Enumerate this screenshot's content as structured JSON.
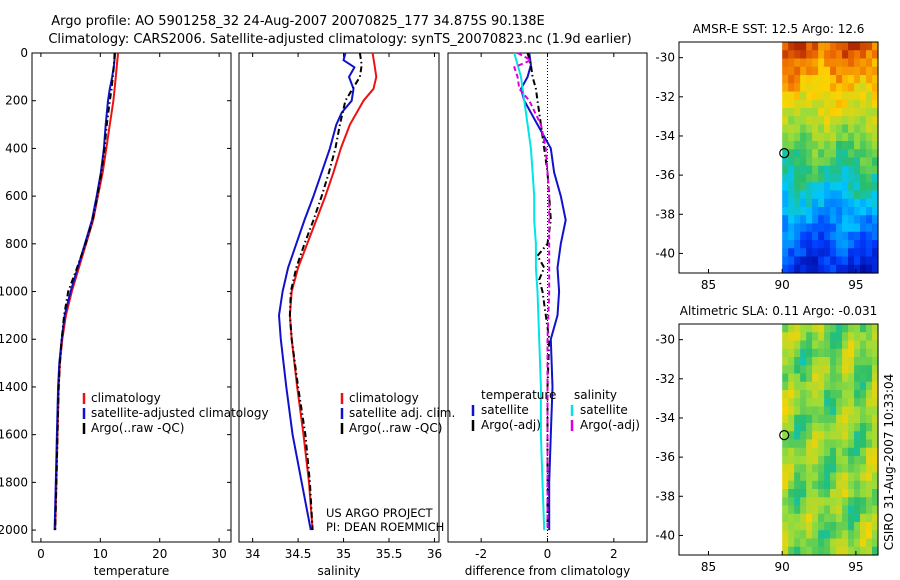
{
  "header": {
    "line1": "Argo profile: AO 5901258_32 24-Aug-2007 20070825_177 34.875S 90.138E",
    "line2": "Climatology: CARS2006. Satellite-adjusted climatology: synTS_20070823.nc (1.9d earlier)"
  },
  "credit": {
    "line1": "US ARGO PROJECT",
    "line2": "PI: DEAN ROEMMICH"
  },
  "side_stamp": "CSIRO 31-Aug-2007 10:33:04",
  "colors": {
    "climatology": "#ee1111",
    "satellite": "#1111cc",
    "argo": "#000000",
    "sat_salinity": "#00e5e5",
    "argo_salinity": "#dd00dd"
  },
  "chart_data": [
    {
      "type": "line",
      "id": "temperature",
      "xlabel": "temperature",
      "xlim": [
        -1.5,
        32
      ],
      "ylim": [
        0,
        2050
      ],
      "xticks": [
        0,
        10,
        20,
        30
      ],
      "yticks": [
        0,
        200,
        400,
        600,
        800,
        1000,
        1200,
        1400,
        1600,
        1800,
        2000
      ],
      "legend": [
        {
          "label": "climatology",
          "key": "climatology"
        },
        {
          "label": "satellite-adjusted climatology",
          "key": "satellite"
        },
        {
          "label": "Argo(..raw -QC)",
          "key": "argo"
        }
      ],
      "series": [
        {
          "name": "climatology",
          "key": "climatology",
          "dash": "",
          "depth": [
            0,
            50,
            100,
            150,
            200,
            300,
            400,
            500,
            600,
            700,
            800,
            900,
            1000,
            1100,
            1200,
            1300,
            1400,
            1600,
            1800,
            2000
          ],
          "values": [
            13.0,
            12.8,
            12.6,
            12.4,
            12.2,
            11.6,
            11.0,
            10.4,
            9.6,
            8.8,
            7.6,
            6.4,
            5.2,
            4.2,
            3.6,
            3.2,
            3.0,
            2.8,
            2.6,
            2.4
          ]
        },
        {
          "name": "satellite-adjusted climatology",
          "key": "satellite",
          "dash": "",
          "depth": [
            0,
            50,
            100,
            150,
            200,
            300,
            400,
            500,
            600,
            700,
            800,
            900,
            1000,
            1100,
            1200,
            1300,
            1400,
            1600,
            1800,
            2000
          ],
          "values": [
            12.5,
            12.3,
            12.0,
            11.6,
            11.3,
            10.9,
            10.6,
            10.1,
            9.4,
            8.6,
            7.4,
            6.2,
            5.0,
            4.0,
            3.5,
            3.1,
            2.9,
            2.7,
            2.5,
            2.3
          ]
        },
        {
          "name": "Argo(..raw -QC)",
          "key": "argo",
          "dash": "6,3,1.5,3",
          "depth": [
            0,
            50,
            100,
            150,
            200,
            300,
            400,
            500,
            600,
            700,
            800,
            900,
            1000,
            1100,
            1200,
            1300,
            1400,
            1600,
            1800,
            2000
          ],
          "values": [
            12.4,
            12.3,
            12.1,
            11.9,
            11.6,
            11.1,
            10.7,
            10.2,
            9.5,
            8.7,
            7.5,
            6.1,
            4.6,
            3.9,
            3.5,
            3.2,
            3.0,
            2.8,
            2.6,
            2.4
          ]
        }
      ]
    },
    {
      "type": "line",
      "id": "salinity",
      "xlabel": "salinity",
      "xlim": [
        33.85,
        36.05
      ],
      "ylim": [
        0,
        2050
      ],
      "xticks": [
        34,
        34.5,
        35,
        35.5,
        36
      ],
      "yticks": [],
      "legend": [
        {
          "label": "climatology",
          "key": "climatology"
        },
        {
          "label": "satellite adj. clim.",
          "key": "satellite"
        },
        {
          "label": "Argo(..raw -QC)",
          "key": "argo"
        }
      ],
      "series": [
        {
          "name": "climatology",
          "key": "climatology",
          "dash": "",
          "depth": [
            0,
            50,
            100,
            150,
            200,
            300,
            400,
            500,
            600,
            700,
            800,
            900,
            1000,
            1100,
            1200,
            1400,
            1600,
            1800,
            2000
          ],
          "values": [
            35.32,
            35.34,
            35.36,
            35.33,
            35.22,
            35.07,
            34.97,
            34.89,
            34.8,
            34.7,
            34.6,
            34.5,
            34.43,
            34.41,
            34.43,
            34.49,
            34.56,
            34.62,
            34.66
          ]
        },
        {
          "name": "satellite adj. clim.",
          "key": "satellite",
          "dash": "",
          "depth": [
            0,
            30,
            60,
            100,
            150,
            200,
            250,
            300,
            400,
            500,
            600,
            700,
            800,
            900,
            1000,
            1100,
            1200,
            1400,
            1600,
            1800,
            2000
          ],
          "values": [
            35.02,
            35.0,
            35.12,
            35.06,
            35.11,
            35.09,
            34.98,
            34.92,
            34.85,
            34.76,
            34.67,
            34.57,
            34.48,
            34.39,
            34.33,
            34.29,
            34.31,
            34.37,
            34.44,
            34.54,
            34.64
          ]
        },
        {
          "name": "Argo(..raw -QC)",
          "key": "argo",
          "dash": "6,3,1.5,3",
          "depth": [
            0,
            50,
            100,
            150,
            200,
            300,
            400,
            500,
            600,
            700,
            800,
            900,
            1000,
            1100,
            1200,
            1400,
            1600,
            1800,
            2000
          ],
          "values": [
            35.18,
            35.2,
            35.18,
            35.1,
            35.02,
            34.96,
            34.91,
            34.84,
            34.76,
            34.67,
            34.57,
            34.48,
            34.42,
            34.41,
            34.43,
            34.5,
            34.58,
            34.63,
            34.66
          ]
        }
      ]
    },
    {
      "type": "line",
      "id": "difference",
      "xlabel": "difference from climatology",
      "xlim": [
        -3.0,
        3.0
      ],
      "ylim": [
        0,
        2050
      ],
      "xticks": [
        -2,
        0,
        2
      ],
      "yticks": [],
      "zero_line": true,
      "legend_left_title": "temperature",
      "legend_right_title": "salinity",
      "legend": [
        {
          "label": "satellite",
          "key": "satellite"
        },
        {
          "label": "Argo(-adj)",
          "key": "argo"
        },
        {
          "label": "satellite",
          "key": "sat_salinity"
        },
        {
          "label": "Argo(-adj)",
          "key": "argo_salinity"
        }
      ],
      "series": [
        {
          "name": "temperature satellite",
          "key": "satellite",
          "dash": "",
          "depth": [
            0,
            50,
            100,
            150,
            200,
            300,
            400,
            500,
            600,
            700,
            800,
            900,
            1000,
            1100,
            1200,
            1400,
            1600,
            1800,
            2000
          ],
          "values": [
            -0.55,
            -0.5,
            -0.6,
            -0.8,
            -0.7,
            -0.3,
            0.1,
            0.2,
            0.4,
            0.55,
            0.4,
            0.3,
            0.35,
            0.3,
            0.1,
            0.15,
            0.1,
            0.05,
            0.05
          ]
        },
        {
          "name": "temperature Argo(-adj)",
          "key": "argo",
          "dash": "6,3,1.5,3",
          "depth": [
            0,
            50,
            100,
            150,
            200,
            300,
            400,
            500,
            600,
            700,
            800,
            850,
            900,
            950,
            1000,
            1100,
            1200,
            1400,
            1600,
            1800,
            2000
          ],
          "values": [
            -0.6,
            -0.5,
            -0.45,
            -0.35,
            -0.3,
            -0.2,
            -0.1,
            0.0,
            0.05,
            0.1,
            0.0,
            -0.3,
            -0.1,
            -0.25,
            -0.15,
            -0.05,
            0.05,
            0.0,
            0.0,
            0.0,
            0.0
          ]
        },
        {
          "name": "salinity satellite",
          "key": "sat_salinity",
          "dash": "",
          "depth": [
            0,
            50,
            100,
            150,
            200,
            300,
            400,
            500,
            600,
            700,
            800,
            900,
            1000,
            1200,
            1400,
            1600,
            1800,
            2000
          ],
          "values": [
            -1.0,
            -0.9,
            -0.8,
            -0.75,
            -0.7,
            -0.6,
            -0.5,
            -0.45,
            -0.4,
            -0.4,
            -0.35,
            -0.35,
            -0.3,
            -0.25,
            -0.2,
            -0.2,
            -0.15,
            -0.1
          ]
        },
        {
          "name": "salinity Argo(-adj)",
          "key": "argo_salinity",
          "dash": "5,3",
          "depth": [
            0,
            30,
            60,
            100,
            150,
            200,
            300,
            400,
            500,
            600,
            800,
            1000,
            1200,
            1400,
            1600,
            1800,
            2000
          ],
          "values": [
            -0.9,
            -0.5,
            -1.0,
            -0.9,
            -0.85,
            -0.55,
            -0.2,
            -0.05,
            0.0,
            0.05,
            0.05,
            0.05,
            0.0,
            0.0,
            0.0,
            0.0,
            0.0
          ]
        }
      ]
    },
    {
      "type": "heatmap",
      "id": "sst",
      "title": "AMSR-E SST: 12.5 Argo: 12.6",
      "xlim": [
        83,
        96.5
      ],
      "ylim": [
        -41,
        -29.2
      ],
      "xticks": [
        85,
        90,
        95
      ],
      "yticks": [
        -30,
        -32,
        -34,
        -36,
        -38,
        -40
      ],
      "data_xlim": [
        90,
        96.5
      ],
      "marker": {
        "lon": 90.138,
        "lat": -34.875
      }
    },
    {
      "type": "heatmap",
      "id": "sla",
      "title": "Altimetric SLA: 0.11 Argo: -0.031",
      "xlim": [
        83,
        96.5
      ],
      "ylim": [
        -41,
        -29.2
      ],
      "xticks": [
        85,
        90,
        95
      ],
      "yticks": [
        -30,
        -32,
        -34,
        -36,
        -38,
        -40
      ],
      "data_xlim": [
        90,
        96.5
      ],
      "marker": {
        "lon": 90.138,
        "lat": -34.875
      }
    }
  ]
}
